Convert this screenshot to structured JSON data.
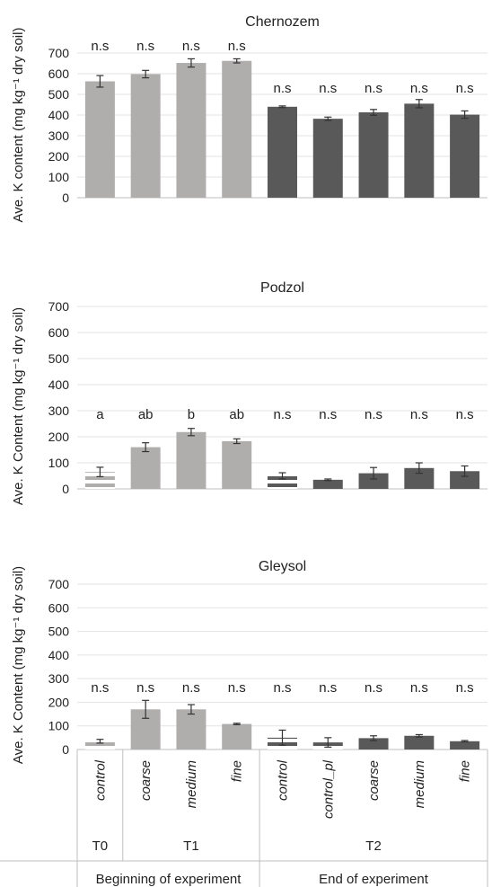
{
  "chart_data": [
    {
      "type": "bar",
      "title": "Chernozem",
      "ylabel": "Ave. K content (mg kg⁻¹ dry soil)",
      "ylim": [
        0,
        700
      ],
      "yticks": [
        "0",
        "100",
        "200",
        "300",
        "400",
        "500",
        "600",
        "700"
      ],
      "categories": [
        "control",
        "coarse",
        "medium",
        "fine",
        "control",
        "control_pl",
        "coarse",
        "medium",
        "fine"
      ],
      "values": [
        563,
        598,
        652,
        662,
        440,
        382,
        413,
        455,
        402
      ],
      "errors": [
        28,
        18,
        20,
        10,
        4,
        8,
        14,
        20,
        18
      ],
      "labels": [
        "n.s",
        "n.s",
        "n.s",
        "n.s",
        "n.s",
        "n.s",
        "n.s",
        "n.s",
        "n.s"
      ],
      "bar_styles": [
        "solid",
        "solid",
        "solid",
        "solid",
        "solid",
        "solid",
        "solid",
        "solid",
        "solid"
      ]
    },
    {
      "type": "bar",
      "title": "Podzol",
      "ylabel": "Ave. K Content (mg kg⁻¹ dry soil)",
      "ylim": [
        0,
        700
      ],
      "yticks": [
        "0",
        "100",
        "200",
        "300",
        "400",
        "500",
        "600",
        "700"
      ],
      "categories": [
        "control",
        "coarse",
        "medium",
        "fine",
        "control",
        "control_pl",
        "coarse",
        "medium",
        "fine"
      ],
      "values": [
        65,
        160,
        218,
        183,
        50,
        35,
        60,
        80,
        68
      ],
      "errors": [
        18,
        17,
        14,
        9,
        12,
        3,
        22,
        20,
        20
      ],
      "labels": [
        "a",
        "ab",
        "b",
        "ab",
        "n.s",
        "n.s",
        "n.s",
        "n.s",
        "n.s"
      ],
      "bar_styles": [
        "striped",
        "solid",
        "solid",
        "solid",
        "striped",
        "solid",
        "solid",
        "solid",
        "solid"
      ]
    },
    {
      "type": "bar",
      "title": "Gleysol",
      "ylabel": "Ave. K Content (mg kg⁻¹ dry soil)",
      "ylim": [
        0,
        700
      ],
      "yticks": [
        "0",
        "100",
        "200",
        "300",
        "400",
        "500",
        "600",
        "700"
      ],
      "categories": [
        "control",
        "coarse",
        "medium",
        "fine",
        "control",
        "control_pl",
        "coarse",
        "medium",
        "fine"
      ],
      "values": [
        35,
        170,
        170,
        108,
        50,
        30,
        48,
        58,
        35
      ],
      "errors": [
        8,
        38,
        20,
        3,
        32,
        20,
        10,
        5,
        3
      ],
      "labels": [
        "n.s",
        "n.s",
        "n.s",
        "n.s",
        "n.s",
        "n.s",
        "n.s",
        "n.s",
        "n.s"
      ],
      "bar_styles": [
        "striped",
        "solid",
        "solid",
        "solid",
        "striped",
        "striped",
        "solid",
        "solid",
        "solid"
      ]
    }
  ],
  "series_colors": {
    "T0": "#b0adad",
    "T1": "#b0adad",
    "T2": "#595959"
  },
  "bar_series": [
    "T0",
    "T1",
    "T1",
    "T1",
    "T2",
    "T2",
    "T2",
    "T2",
    "T2"
  ],
  "axis_groups": {
    "time": [
      {
        "label": "T0",
        "span": [
          0,
          0
        ]
      },
      {
        "label": "T1",
        "span": [
          1,
          3
        ]
      },
      {
        "label": "T2",
        "span": [
          4,
          8
        ]
      }
    ],
    "phase": [
      {
        "label": "Beginning of experiment",
        "span": [
          0,
          3
        ]
      },
      {
        "label": "End of experiment",
        "span": [
          4,
          8
        ]
      }
    ]
  }
}
